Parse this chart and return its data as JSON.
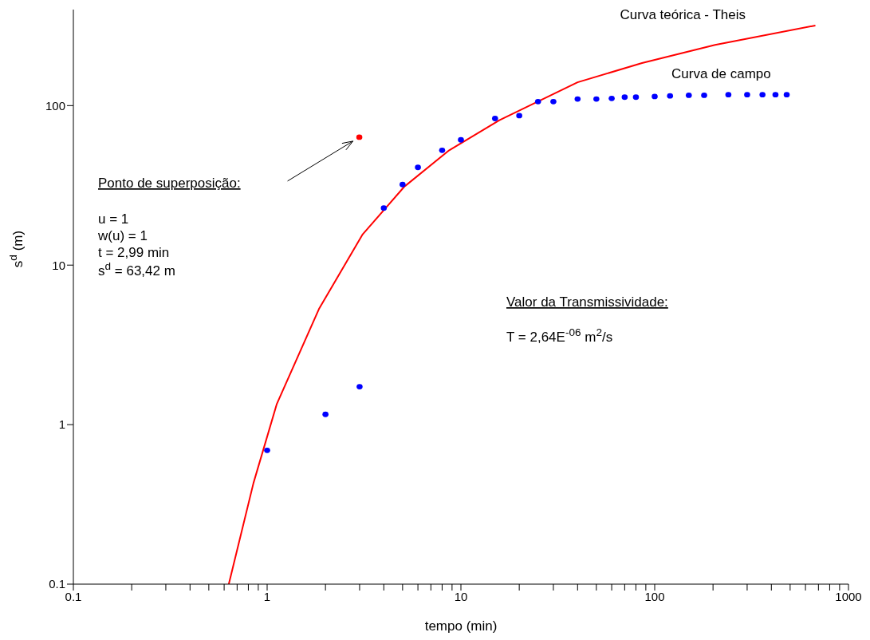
{
  "chart_data": {
    "type": "scatter",
    "xlabel": "tempo (min)",
    "ylabel": "s$^{d}$ (m)",
    "log": "xy",
    "grid": false,
    "legend": false,
    "xlim": [
      0.1,
      1000
    ],
    "ylim": [
      0.1,
      400
    ],
    "xticks": [
      0.1,
      {
        "value": 0.2,
        "label": null
      },
      {
        "value": 0.3,
        "label": null
      },
      {
        "value": 0.4,
        "label": null
      },
      {
        "value": 0.5,
        "label": null
      },
      {
        "value": 0.6,
        "label": null
      },
      {
        "value": 0.7,
        "label": null
      },
      {
        "value": 0.8,
        "label": null
      },
      {
        "value": 0.9,
        "label": null
      },
      1,
      {
        "value": 2,
        "label": null
      },
      {
        "value": 3,
        "label": null
      },
      {
        "value": 4,
        "label": null
      },
      {
        "value": 5,
        "label": null
      },
      {
        "value": 6,
        "label": null
      },
      {
        "value": 7,
        "label": null
      },
      {
        "value": 8,
        "label": null
      },
      {
        "value": 9,
        "label": null
      },
      10,
      {
        "value": 20,
        "label": null
      },
      {
        "value": 30,
        "label": null
      },
      {
        "value": 40,
        "label": null
      },
      {
        "value": 50,
        "label": null
      },
      {
        "value": 60,
        "label": null
      },
      {
        "value": 70,
        "label": null
      },
      {
        "value": 80,
        "label": null
      },
      {
        "value": 90,
        "label": null
      },
      100,
      {
        "value": 200,
        "label": null
      },
      {
        "value": 300,
        "label": null
      },
      {
        "value": 400,
        "label": null
      },
      {
        "value": 500,
        "label": null
      },
      {
        "value": 600,
        "label": null
      },
      {
        "value": 700,
        "label": null
      },
      {
        "value": 800,
        "label": null
      },
      {
        "value": 900,
        "label": null
      },
      1000
    ],
    "yticks": [
      0.1,
      1,
      10,
      100
    ],
    "series": [
      {
        "name": "Curva teórica - Theis",
        "type": "line",
        "color": "#ff0000",
        "marker": "none",
        "line_style": "solid",
        "x": [
          0.634,
          0.85,
          1.12,
          1.85,
          3.1,
          5.1,
          8.7,
          15.8,
          40,
          86,
          205,
          675
        ],
        "values": [
          0.1,
          0.43,
          1.34,
          5.3,
          15.5,
          31,
          52.5,
          81,
          140,
          185,
          240,
          318
        ]
      },
      {
        "name": "Curva de campo",
        "color": "#0000ff",
        "marker": "circle",
        "x": [
          1,
          2,
          3,
          4,
          5,
          6,
          8,
          10,
          15,
          20,
          25,
          30,
          40,
          50,
          60,
          70,
          80,
          100,
          120,
          150,
          180,
          240,
          300,
          360,
          420,
          480
        ],
        "values": [
          0.69,
          1.16,
          1.73,
          22.8,
          32,
          41,
          52.5,
          61,
          83,
          86.5,
          106,
          106,
          110,
          110,
          111,
          113,
          113,
          114,
          115,
          116,
          116,
          117,
          117,
          117,
          117,
          117
        ]
      },
      {
        "color": "#ff0000",
        "marker": "circle",
        "x": [
          2.99
        ],
        "values": [
          63.42
        ]
      }
    ],
    "annotations": [
      "Ponto de superposição:",
      "u = 1",
      "w(u) = 1",
      "t = 2,99 min",
      "s$^{d}$ = 63,42 m",
      "Valor da Transmissividade:",
      "T = 2,64E$^{-06}$ m$^{2}$/s"
    ]
  }
}
